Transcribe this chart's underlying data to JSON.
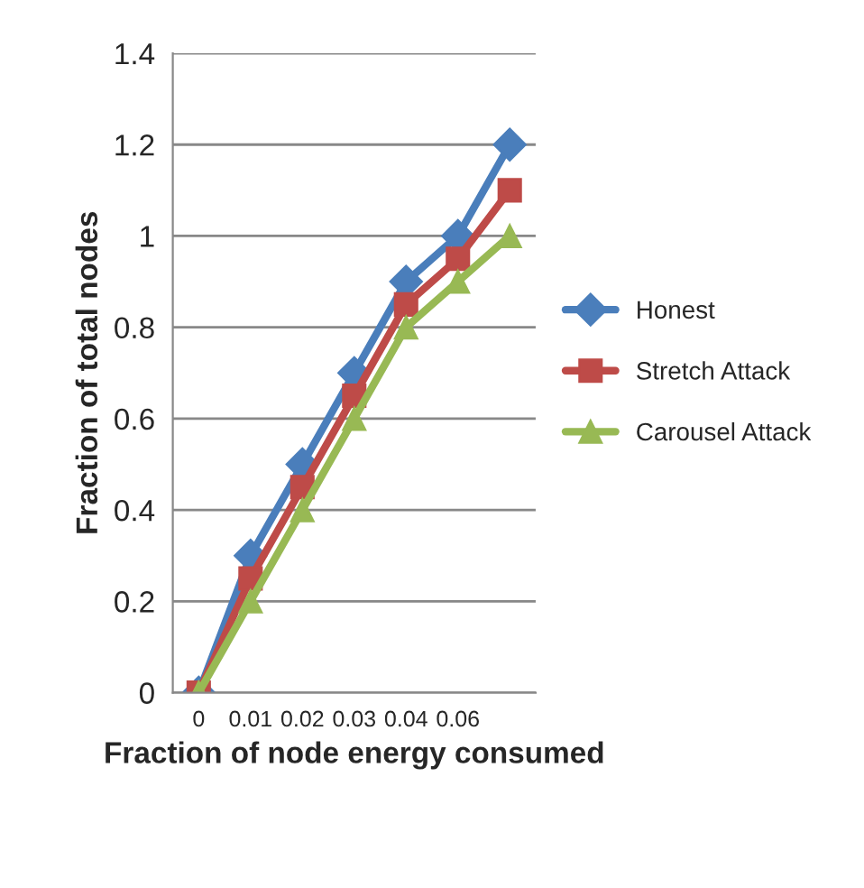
{
  "chart_data": {
    "type": "line",
    "xlabel": "Fraction of node energy consumed",
    "ylabel": "Fraction of total nodes",
    "categories": [
      "0",
      "0.01",
      "0.02",
      "0.03",
      "0.04",
      "0.06",
      null
    ],
    "series": [
      {
        "name": "Honest",
        "color": "#4a7ebb",
        "marker": "diamond",
        "values": [
          0,
          0.3,
          0.5,
          0.7,
          0.9,
          1.0,
          1.2
        ]
      },
      {
        "name": "Stretch Attack",
        "color": "#be4b48",
        "marker": "square",
        "values": [
          0,
          0.25,
          0.45,
          0.65,
          0.85,
          0.95,
          1.1
        ]
      },
      {
        "name": "Carousel Attack",
        "color": "#98b954",
        "marker": "triangle",
        "values": [
          0,
          0.2,
          0.4,
          0.6,
          0.8,
          0.9,
          1.0
        ]
      }
    ],
    "ylim": [
      0,
      1.4
    ],
    "yticks": [
      0,
      0.2,
      0.4,
      0.6,
      0.8,
      1,
      1.2,
      1.4
    ],
    "grid": "y",
    "legend": "right",
    "line_style": "solid"
  }
}
